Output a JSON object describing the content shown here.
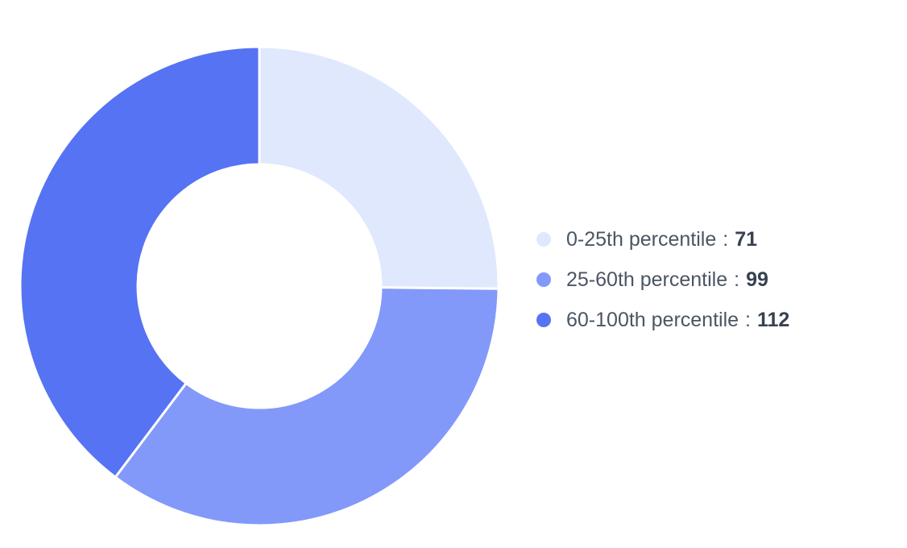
{
  "chart_data": {
    "type": "pie",
    "categories": [
      "0-25th percentile",
      "25-60th percentile",
      "60-100th percentile"
    ],
    "values": [
      71,
      99,
      112
    ],
    "colors": [
      "#dfe8fd",
      "#8299fa",
      "#5673f4"
    ],
    "legend_position": "right",
    "value_separator": ":"
  }
}
